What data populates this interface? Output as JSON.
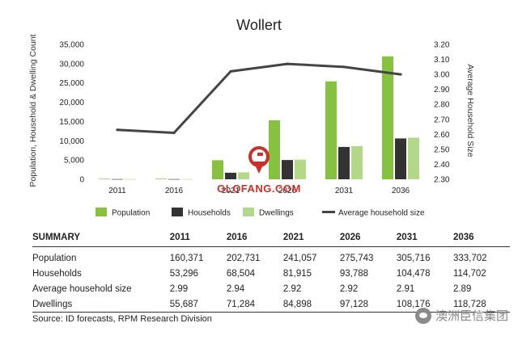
{
  "chart_data": {
    "type": "bar",
    "title": "Wollert",
    "categories": [
      "2011",
      "2016",
      "2021",
      "2026",
      "2031",
      "2036"
    ],
    "ylabel_left": "Population, Household & Dwelling Count",
    "ylabel_right": "Average Household Size",
    "ylim_left": [
      0,
      35000
    ],
    "ylim_right": [
      2.3,
      3.2
    ],
    "yticks_left": [
      "0",
      "5,000",
      "10,000",
      "15,000",
      "20,000",
      "25,000",
      "30,000",
      "35,000"
    ],
    "yticks_right": [
      "2.30",
      "2.40",
      "2.50",
      "2.60",
      "2.70",
      "2.80",
      "2.90",
      "3.00",
      "3.10",
      "3.20"
    ],
    "series": [
      {
        "name": "Population",
        "type": "bar",
        "axis": "left",
        "color": "#86c13f",
        "values": [
          150,
          150,
          4950,
          15300,
          25400,
          31900
        ]
      },
      {
        "name": "Households",
        "type": "bar",
        "axis": "left",
        "color": "#333333",
        "values": [
          50,
          50,
          1700,
          5000,
          8400,
          10600
        ]
      },
      {
        "name": "Dwellings",
        "type": "bar",
        "axis": "left",
        "color": "#b3d88a",
        "values": [
          60,
          60,
          1800,
          5100,
          8600,
          10800
        ]
      },
      {
        "name": "Average household size",
        "type": "line",
        "axis": "right",
        "color": "#444444",
        "values": [
          2.63,
          2.61,
          3.02,
          3.07,
          3.05,
          3.0
        ]
      }
    ],
    "legend_position": "bottom",
    "grid": false
  },
  "watermark": {
    "text": "GLOFANG.COM",
    "color": "#c9302c"
  },
  "summary": {
    "header": [
      "SUMMARY",
      "2011",
      "2016",
      "2021",
      "2026",
      "2031",
      "2036"
    ],
    "rows": [
      [
        "Population",
        "160,371",
        "202,731",
        "241,057",
        "275,743",
        "305,716",
        "333,702"
      ],
      [
        "Households",
        "53,296",
        "68,504",
        "81,915",
        "93,788",
        "104,478",
        "114,702"
      ],
      [
        "Average household size",
        "2.99",
        "2.94",
        "2.92",
        "2.92",
        "2.91",
        "2.89"
      ],
      [
        "Dwellings",
        "55,687",
        "71,284",
        "84,898",
        "97,128",
        "108,176",
        "118,728"
      ]
    ]
  },
  "source": "Source: ID forecasts, RPM Research Division",
  "brand": {
    "text": "澳洲臣信集团",
    "icon": "wechat-icon"
  }
}
